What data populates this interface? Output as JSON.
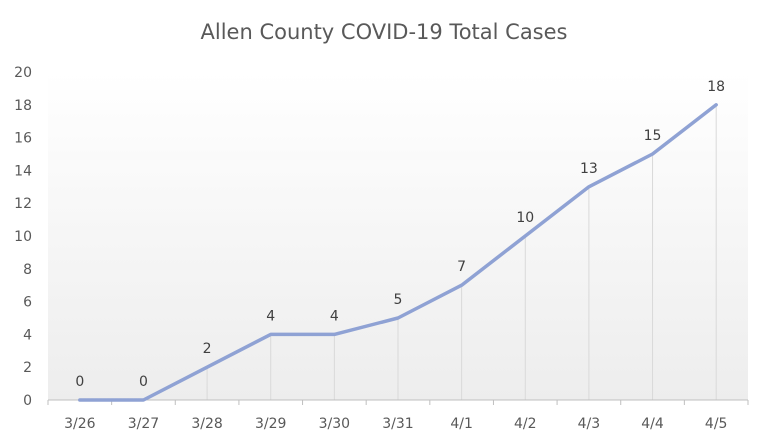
{
  "chart_data": {
    "type": "line",
    "title": "Allen County COVID-19 Total Cases",
    "xlabel": "",
    "ylabel": "",
    "categories": [
      "3/26",
      "3/27",
      "3/28",
      "3/29",
      "3/30",
      "3/31",
      "4/1",
      "4/2",
      "4/3",
      "4/4",
      "4/5"
    ],
    "series": [
      {
        "values": [
          0,
          0,
          2,
          4,
          4,
          5,
          7,
          10,
          13,
          15,
          18
        ]
      }
    ],
    "ylim": [
      0,
      20
    ],
    "yticks": [
      0,
      2,
      4,
      6,
      8,
      10,
      12,
      14,
      16,
      18,
      20
    ],
    "data_labels": true,
    "drop_lines": true,
    "grid": false,
    "legend": "none",
    "line_color": "#8FA2D4",
    "drop_line_color": "#D9D9D9",
    "background_gradient": [
      "#FFFFFF",
      "#EDEDED"
    ]
  }
}
